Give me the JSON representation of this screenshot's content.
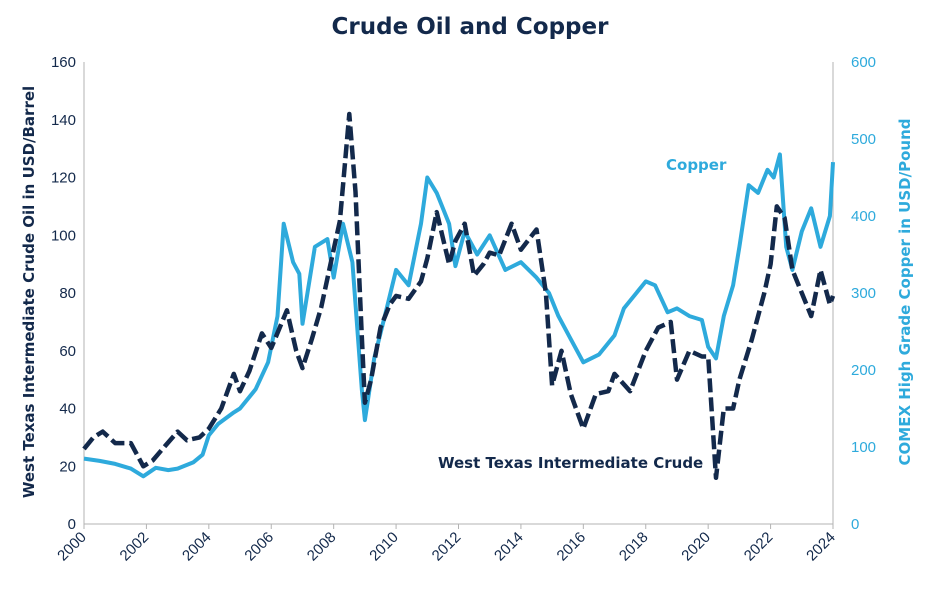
{
  "chart_data": {
    "type": "line",
    "title": "Crude Oil and Copper",
    "xlabel": "",
    "ylabel_left": "West Texas Intermediate Crude Oil in USD/Barrel",
    "ylabel_right": "COMEX High Grade Copper in USD/Pound",
    "xlim": [
      2000,
      2024
    ],
    "ylim_left": [
      0,
      160
    ],
    "ylim_right": [
      0,
      600
    ],
    "x_ticks": [
      "2000",
      "2002",
      "2004",
      "2006",
      "2008",
      "2010",
      "2012",
      "2014",
      "2016",
      "2018",
      "2020",
      "2022",
      "2024"
    ],
    "y_ticks_left": [
      "0",
      "20",
      "40",
      "60",
      "80",
      "100",
      "120",
      "140",
      "160"
    ],
    "y_ticks_right": [
      "0",
      "100",
      "200",
      "300",
      "400",
      "500",
      "600"
    ],
    "grid": false,
    "colors": {
      "oil": "#13294b",
      "copper": "#2eaadc",
      "title": "#13294b"
    },
    "series": [
      {
        "name": "West Texas Intermediate Crude",
        "axis": "left",
        "style": "dashed",
        "x": [
          2000.0,
          2000.3,
          2000.6,
          2001.0,
          2001.5,
          2001.9,
          2002.2,
          2002.6,
          2003.0,
          2003.3,
          2003.7,
          2004.0,
          2004.4,
          2004.8,
          2005.0,
          2005.3,
          2005.7,
          2006.0,
          2006.5,
          2006.8,
          2007.0,
          2007.3,
          2007.6,
          2007.9,
          2008.2,
          2008.5,
          2008.7,
          2008.9,
          2009.0,
          2009.2,
          2009.5,
          2009.8,
          2010.0,
          2010.4,
          2010.8,
          2011.0,
          2011.3,
          2011.7,
          2011.9,
          2012.2,
          2012.5,
          2012.8,
          2013.0,
          2013.3,
          2013.7,
          2014.0,
          2014.5,
          2014.8,
          2015.0,
          2015.3,
          2015.6,
          2016.0,
          2016.4,
          2016.8,
          2017.0,
          2017.5,
          2018.0,
          2018.4,
          2018.8,
          2019.0,
          2019.4,
          2019.8,
          2020.0,
          2020.25,
          2020.5,
          2020.8,
          2021.0,
          2021.4,
          2021.8,
          2022.0,
          2022.2,
          2022.45,
          2022.7,
          2023.0,
          2023.3,
          2023.6,
          2023.9,
          2024.0
        ],
        "y": [
          26,
          30,
          32,
          28,
          28,
          20,
          22,
          27,
          32,
          29,
          30,
          33,
          40,
          52,
          46,
          53,
          66,
          61,
          74,
          60,
          54,
          64,
          75,
          90,
          105,
          142,
          115,
          65,
          42,
          50,
          68,
          76,
          79,
          78,
          84,
          92,
          108,
          90,
          98,
          104,
          86,
          90,
          94,
          93,
          104,
          95,
          102,
          80,
          48,
          60,
          45,
          33,
          45,
          46,
          52,
          46,
          60,
          68,
          70,
          50,
          60,
          58,
          58,
          16,
          40,
          40,
          50,
          64,
          80,
          90,
          110,
          106,
          88,
          80,
          72,
          88,
          76,
          79
        ]
      },
      {
        "name": "Copper",
        "axis": "right",
        "style": "solid",
        "x": [
          2000.0,
          2000.5,
          2001.0,
          2001.5,
          2001.9,
          2002.3,
          2002.7,
          2003.0,
          2003.5,
          2003.8,
          2004.0,
          2004.3,
          2004.8,
          2005.0,
          2005.5,
          2005.9,
          2006.2,
          2006.4,
          2006.7,
          2006.9,
          2007.0,
          2007.4,
          2007.8,
          2008.0,
          2008.3,
          2008.6,
          2008.9,
          2009.0,
          2009.3,
          2009.7,
          2010.0,
          2010.4,
          2010.8,
          2011.0,
          2011.3,
          2011.7,
          2011.9,
          2012.2,
          2012.6,
          2013.0,
          2013.5,
          2014.0,
          2014.5,
          2014.9,
          2015.2,
          2015.6,
          2016.0,
          2016.5,
          2017.0,
          2017.3,
          2017.7,
          2018.0,
          2018.3,
          2018.7,
          2019.0,
          2019.4,
          2019.8,
          2020.0,
          2020.25,
          2020.5,
          2020.8,
          2021.0,
          2021.3,
          2021.6,
          2021.9,
          2022.1,
          2022.3,
          2022.5,
          2022.7,
          2023.0,
          2023.3,
          2023.6,
          2023.9,
          2024.0
        ],
        "y": [
          85,
          82,
          78,
          72,
          62,
          73,
          70,
          72,
          80,
          90,
          115,
          130,
          145,
          150,
          175,
          210,
          270,
          390,
          340,
          325,
          260,
          360,
          370,
          320,
          390,
          340,
          175,
          135,
          215,
          280,
          330,
          310,
          390,
          450,
          430,
          390,
          335,
          380,
          350,
          375,
          330,
          340,
          320,
          300,
          270,
          240,
          210,
          220,
          245,
          280,
          300,
          315,
          310,
          275,
          280,
          270,
          265,
          230,
          215,
          270,
          310,
          360,
          440,
          430,
          460,
          450,
          480,
          360,
          330,
          380,
          410,
          360,
          400,
          470
        ]
      }
    ],
    "annotations": [
      "Copper",
      "West Texas Intermediate Crude"
    ]
  }
}
